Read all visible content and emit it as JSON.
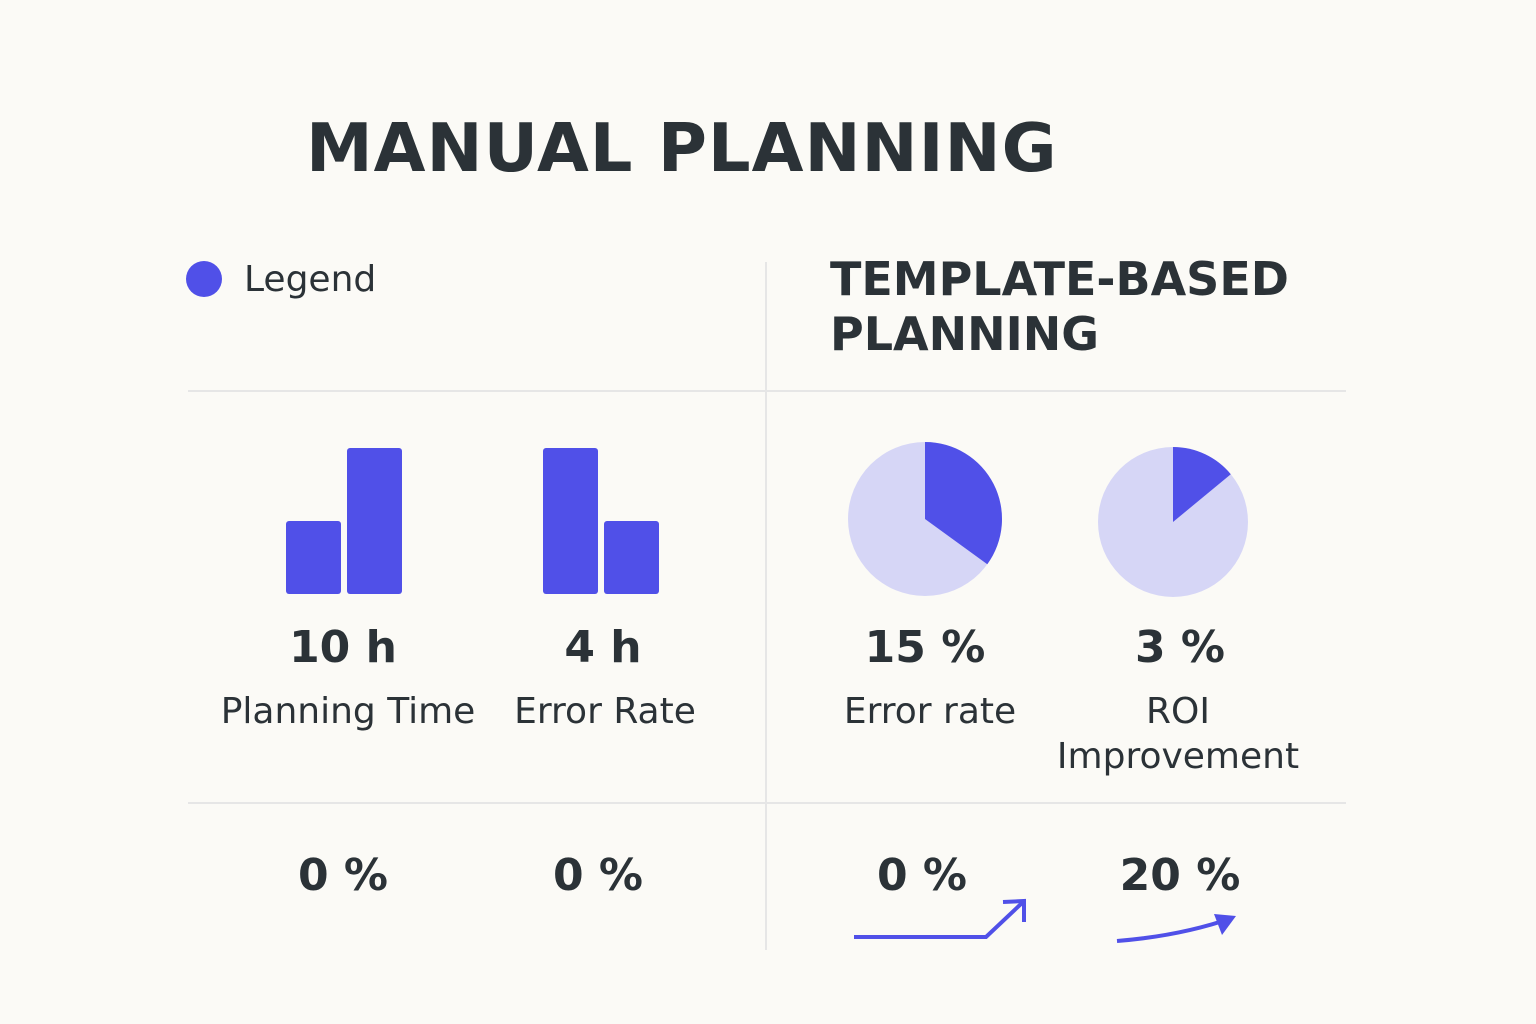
{
  "title_left": "MANUAL PLANNING",
  "legend_label": "Legend",
  "title_right_line1": "TEMPLATE-BASED",
  "title_right_line2": "PLANNING",
  "colors": {
    "accent": "#5050e8",
    "pie_background": "#d6d6f6",
    "text": "#2b3237",
    "divider": "#e6e6e6",
    "background": "#fbfaf6"
  },
  "metrics": [
    {
      "value": "10 h",
      "label": "Planning Time",
      "bottom": "0 %"
    },
    {
      "value": "4 h",
      "label": "Error Rate",
      "bottom": "0 %"
    },
    {
      "value": "15 %",
      "label": "Error rate",
      "bottom": "0 %"
    },
    {
      "value": "3 %",
      "label_line1": "ROI",
      "label_line2": "Improvement",
      "bottom": "20 %"
    }
  ],
  "chart_data": [
    {
      "type": "bar",
      "name": "",
      "values": [
        1.0,
        2.0
      ]
    },
    {
      "type": "bar",
      "name": "",
      "values": [
        2.0,
        1.0
      ]
    },
    {
      "type": "pie",
      "highlight_fraction": 0.35
    },
    {
      "type": "pie",
      "highlight_fraction": 0.14
    }
  ]
}
